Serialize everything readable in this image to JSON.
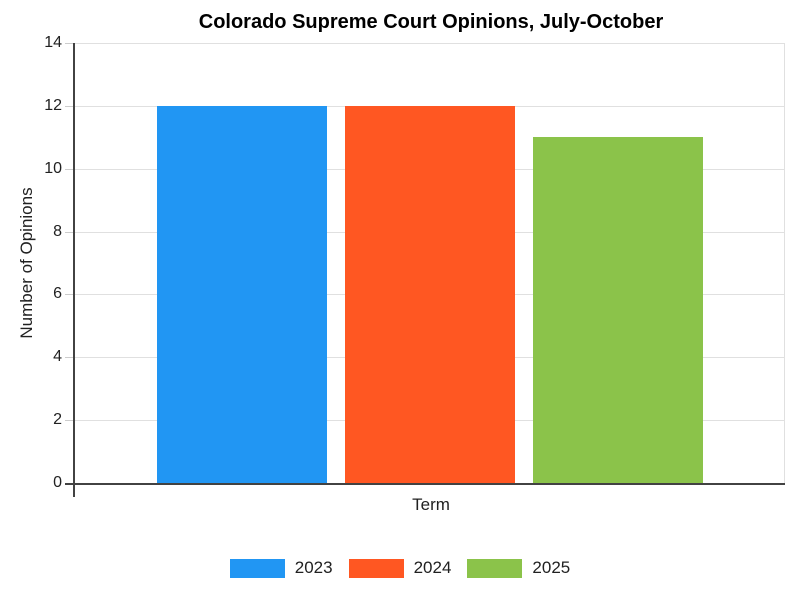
{
  "background": "#ffffff",
  "chart_data": {
    "type": "bar",
    "title": "Colorado Supreme Court Opinions, July-October",
    "xlabel": "Term",
    "ylabel": "Number of Opinions",
    "ylim": [
      0,
      14
    ],
    "yticks": [
      0,
      2,
      4,
      6,
      8,
      10,
      12,
      14
    ],
    "grid": true,
    "legend_position": "bottom",
    "series": [
      {
        "name": "2023",
        "values": [
          12
        ],
        "color": "#2196f3"
      },
      {
        "name": "2024",
        "values": [
          12
        ],
        "color": "#ff5722"
      },
      {
        "name": "2025",
        "values": [
          11
        ],
        "color": "#8bc34a"
      }
    ],
    "colors": {
      "title": "#000000",
      "text": "#212121",
      "axis": "#424242",
      "grid": "#e0e0e0",
      "tick": "#cccccc"
    }
  }
}
